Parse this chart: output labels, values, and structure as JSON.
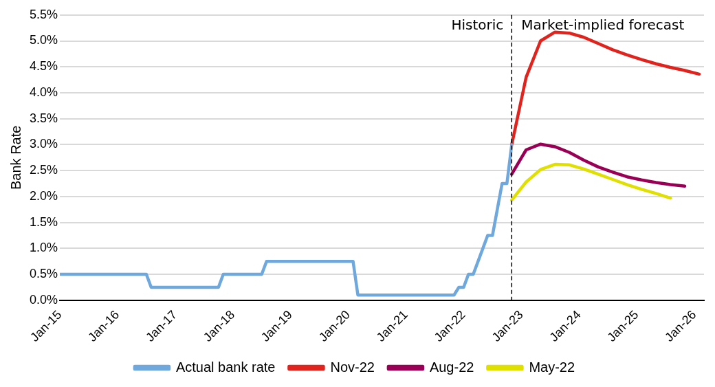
{
  "chart_data": {
    "type": "line",
    "ylabel": "Bank Rate",
    "grid": "y",
    "legend": "bottom",
    "marker": "none",
    "line_style": "solid",
    "xlim": [
      "2015-01",
      "2026-03"
    ],
    "xticks": [
      {
        "value": "2015-01",
        "label": "Jan-15"
      },
      {
        "value": "2016-01",
        "label": "Jan-16"
      },
      {
        "value": "2017-01",
        "label": "Jan-17"
      },
      {
        "value": "2018-01",
        "label": "Jan-18"
      },
      {
        "value": "2019-01",
        "label": "Jan-19"
      },
      {
        "value": "2020-01",
        "label": "Jan-20"
      },
      {
        "value": "2021-01",
        "label": "Jan-21"
      },
      {
        "value": "2022-01",
        "label": "Jan-22"
      },
      {
        "value": "2023-01",
        "label": "Jan-23"
      },
      {
        "value": "2024-01",
        "label": "Jan-24"
      },
      {
        "value": "2025-01",
        "label": "Jan-25"
      },
      {
        "value": "2026-01",
        "label": "Jan-26"
      }
    ],
    "ylim": [
      0,
      5.5
    ],
    "yticks": [
      {
        "value": 0,
        "label": "0.0%"
      },
      {
        "value": 0.5,
        "label": "0.5%"
      },
      {
        "value": 1,
        "label": "1.0%"
      },
      {
        "value": 1.5,
        "label": "1.5%"
      },
      {
        "value": 2,
        "label": "2.0%"
      },
      {
        "value": 2.5,
        "label": "2.5%"
      },
      {
        "value": 3,
        "label": "3.0%"
      },
      {
        "value": 3.5,
        "label": "3.5%"
      },
      {
        "value": 4,
        "label": "4.0%"
      },
      {
        "value": 4.5,
        "label": "4.5%"
      },
      {
        "value": 5,
        "label": "5.0%"
      },
      {
        "value": 5.5,
        "label": "5.5%"
      }
    ],
    "ref_lines": [
      {
        "axis": "x",
        "value": "2022-11",
        "color": "#000000",
        "line_style": "dashed"
      }
    ],
    "annotations": [
      "Historic",
      "Market-implied forecast"
    ],
    "series": [
      {
        "name": "Actual bank rate",
        "color": "#6fa8dc",
        "x": [
          "2015-01",
          "2016-07",
          "2016-08",
          "2017-10",
          "2017-11",
          "2018-07",
          "2018-08",
          "2020-02",
          "2020-03",
          "2021-11",
          "2021-12",
          "2022-01",
          "2022-02",
          "2022-03",
          "2022-05",
          "2022-06",
          "2022-07",
          "2022-08",
          "2022-09",
          "2022-10",
          "2022-11"
        ],
        "values": [
          0.5,
          0.5,
          0.25,
          0.25,
          0.5,
          0.5,
          0.75,
          0.75,
          0.1,
          0.1,
          0.25,
          0.25,
          0.5,
          0.5,
          1.0,
          1.25,
          1.25,
          1.75,
          2.25,
          2.25,
          3.0
        ]
      },
      {
        "name": "Nov-22",
        "color": "#e0241d",
        "x": [
          "2022-11",
          "2023-02",
          "2023-05",
          "2023-08",
          "2023-11",
          "2024-02",
          "2024-05",
          "2024-08",
          "2024-11",
          "2025-02",
          "2025-05",
          "2025-08",
          "2025-11",
          "2026-02"
        ],
        "values": [
          3.0,
          4.3,
          5.0,
          5.17,
          5.15,
          5.07,
          4.95,
          4.83,
          4.73,
          4.64,
          4.56,
          4.49,
          4.43,
          4.36
        ]
      },
      {
        "name": "Aug-22",
        "color": "#990055",
        "x": [
          "2022-11",
          "2023-02",
          "2023-05",
          "2023-08",
          "2023-11",
          "2024-02",
          "2024-05",
          "2024-08",
          "2024-11",
          "2025-02",
          "2025-05",
          "2025-08",
          "2025-11"
        ],
        "values": [
          2.43,
          2.9,
          3.01,
          2.96,
          2.85,
          2.7,
          2.57,
          2.47,
          2.38,
          2.32,
          2.27,
          2.23,
          2.2
        ]
      },
      {
        "name": "May-22",
        "color": "#e0e000",
        "x": [
          "2022-11",
          "2023-02",
          "2023-05",
          "2023-08",
          "2023-11",
          "2024-02",
          "2024-05",
          "2024-08",
          "2024-11",
          "2025-02",
          "2025-05",
          "2025-08"
        ],
        "values": [
          1.93,
          2.28,
          2.52,
          2.62,
          2.61,
          2.53,
          2.43,
          2.33,
          2.23,
          2.14,
          2.06,
          1.97
        ]
      }
    ]
  }
}
